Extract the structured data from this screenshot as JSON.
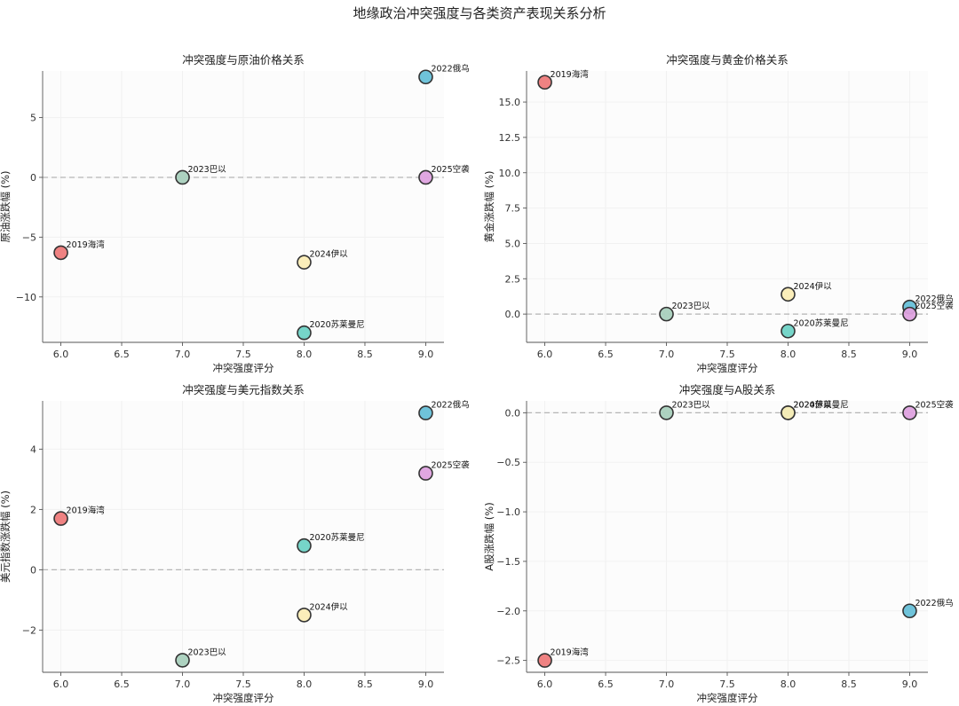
{
  "chart_data": {
    "title": "地缘政治冲突强度与各类资产表现关系分析",
    "events": [
      {
        "label": "2019海湾",
        "color": "#ee7b7b"
      },
      {
        "label": "2020苏莱曼尼",
        "color": "#6fd3c6"
      },
      {
        "label": "2022俄乌",
        "color": "#67c0d8"
      },
      {
        "label": "2023巴以",
        "color": "#a9d0bd"
      },
      {
        "label": "2024伊以",
        "color": "#fbedb6"
      },
      {
        "label": "2025空袭",
        "color": "#dea2df"
      }
    ],
    "panels": [
      {
        "type": "scatter",
        "title": "冲突强度与原油价格关系",
        "xlabel": "冲突强度评分",
        "ylabel": "原油涨跌幅 (%)",
        "xlim": [
          5.85,
          9.15
        ],
        "ylim": [
          -13.8,
          8.9
        ],
        "xticks": [
          6.0,
          6.5,
          7.0,
          7.5,
          8.0,
          8.5,
          9.0
        ],
        "yticks": [
          -10,
          -5,
          0,
          5
        ],
        "points": [
          {
            "label": "2019海湾",
            "x": 6.0,
            "y": -6.3
          },
          {
            "label": "2020苏莱曼尼",
            "x": 8.0,
            "y": -13.0
          },
          {
            "label": "2022俄乌",
            "x": 9.0,
            "y": 8.4
          },
          {
            "label": "2023巴以",
            "x": 7.0,
            "y": 0.0
          },
          {
            "label": "2024伊以",
            "x": 8.0,
            "y": -7.1
          },
          {
            "label": "2025空袭",
            "x": 9.0,
            "y": 0.0
          }
        ]
      },
      {
        "type": "scatter",
        "title": "冲突强度与黄金价格关系",
        "xlabel": "冲突强度评分",
        "ylabel": "黄金涨跌幅 (%)",
        "xlim": [
          5.85,
          9.15
        ],
        "ylim": [
          -2.0,
          17.2
        ],
        "xticks": [
          6.0,
          6.5,
          7.0,
          7.5,
          8.0,
          8.5,
          9.0
        ],
        "yticks": [
          0.0,
          2.5,
          5.0,
          7.5,
          10.0,
          12.5,
          15.0
        ],
        "points": [
          {
            "label": "2019海湾",
            "x": 6.0,
            "y": 16.4
          },
          {
            "label": "2020苏莱曼尼",
            "x": 8.0,
            "y": -1.2
          },
          {
            "label": "2022俄乌",
            "x": 9.0,
            "y": 0.5
          },
          {
            "label": "2023巴以",
            "x": 7.0,
            "y": 0.0
          },
          {
            "label": "2024伊以",
            "x": 8.0,
            "y": 1.4
          },
          {
            "label": "2025空袭",
            "x": 9.0,
            "y": 0.0
          }
        ]
      },
      {
        "type": "scatter",
        "title": "冲突强度与美元指数关系",
        "xlabel": "冲突强度评分",
        "ylabel": "美元指数涨跌幅 (%)",
        "xlim": [
          5.85,
          9.15
        ],
        "ylim": [
          -3.4,
          5.6
        ],
        "xticks": [
          6.0,
          6.5,
          7.0,
          7.5,
          8.0,
          8.5,
          9.0
        ],
        "yticks": [
          -2,
          0,
          2,
          4
        ],
        "points": [
          {
            "label": "2019海湾",
            "x": 6.0,
            "y": 1.7
          },
          {
            "label": "2020苏莱曼尼",
            "x": 8.0,
            "y": 0.8
          },
          {
            "label": "2022俄乌",
            "x": 9.0,
            "y": 5.2
          },
          {
            "label": "2023巴以",
            "x": 7.0,
            "y": -3.0
          },
          {
            "label": "2024伊以",
            "x": 8.0,
            "y": -1.5
          },
          {
            "label": "2025空袭",
            "x": 9.0,
            "y": 3.2
          }
        ]
      },
      {
        "type": "scatter",
        "title": "冲突强度与A股关系",
        "xlabel": "冲突强度评分",
        "ylabel": "A股涨跌幅 (%)",
        "xlim": [
          5.85,
          9.15
        ],
        "ylim": [
          -2.62,
          0.12
        ],
        "xticks": [
          6.0,
          6.5,
          7.0,
          7.5,
          8.0,
          8.5,
          9.0
        ],
        "yticks": [
          0.0,
          -0.5,
          -1.0,
          -1.5,
          -2.0,
          -2.5
        ],
        "points": [
          {
            "label": "2019海湾",
            "x": 6.0,
            "y": -2.5
          },
          {
            "label": "2020苏莱曼尼",
            "x": 8.0,
            "y": 0.0
          },
          {
            "label": "2022俄乌",
            "x": 9.0,
            "y": -2.0
          },
          {
            "label": "2023巴以",
            "x": 7.0,
            "y": 0.0
          },
          {
            "label": "2024伊以",
            "x": 8.0,
            "y": 0.0
          },
          {
            "label": "2025空袭",
            "x": 9.0,
            "y": 0.0
          }
        ]
      }
    ]
  }
}
